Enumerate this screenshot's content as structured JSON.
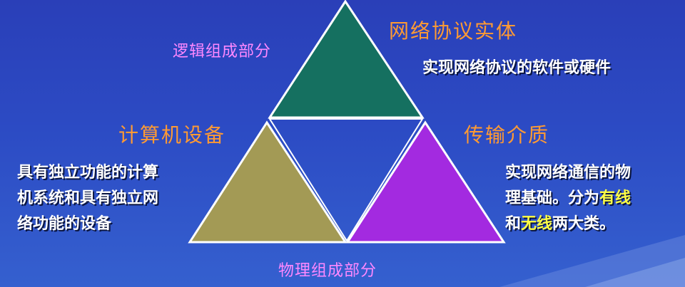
{
  "top_triangle": {
    "title": "网络协议实体",
    "category": "逻辑组成部分",
    "desc": "实现网络协议的软件或硬件"
  },
  "left_triangle": {
    "title": "计算机设备",
    "desc_lines": [
      "具有独立功能的计算",
      "机系统和具有独立网",
      "络功能的设备"
    ]
  },
  "right_triangle": {
    "title": "传输介质",
    "desc_line1": "实现网络通信的物",
    "desc_line2_plain": "理基础。分为",
    "desc_line2_highlight": "有线",
    "desc_line3_prefix": "和",
    "desc_line3_highlight": "无线",
    "desc_line3_suffix": "两大类。"
  },
  "bottom_label": "物理组成部分",
  "colors": {
    "top_fill": "#157060",
    "left_fill": "#a39a55",
    "right_fill": "#a32ae0",
    "title_color": "#ff9a33",
    "category_color": "#ff88ff",
    "highlight": "#ffff44"
  }
}
